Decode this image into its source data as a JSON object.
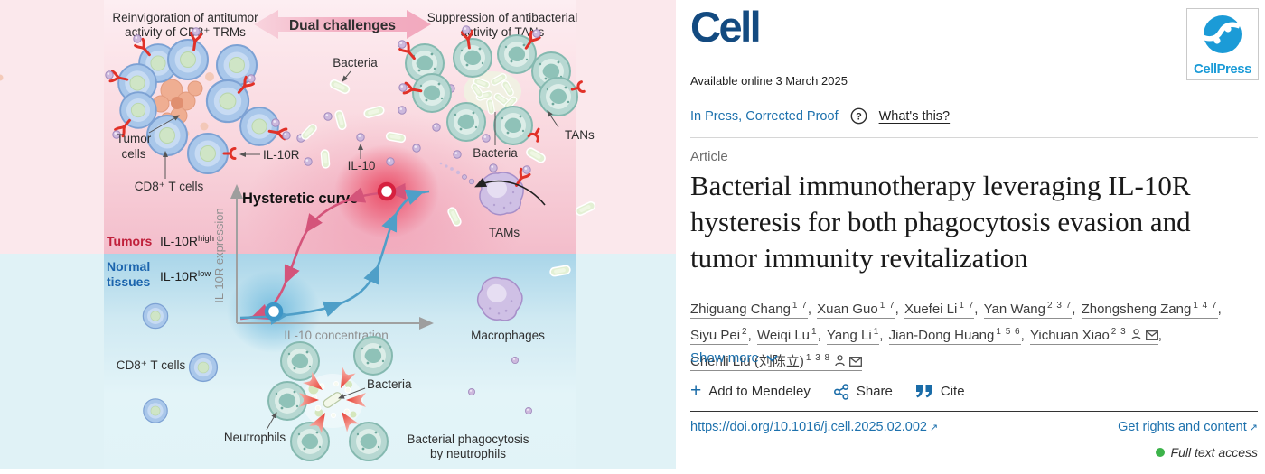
{
  "colors": {
    "link_blue": "#1d71ad",
    "icon_blue": "#1a6ca8",
    "journal_navy": "#134a80",
    "cellpress_blue": "#1b9bd7",
    "access_green": "#3cb34a",
    "tumors_red": "#c0203b",
    "normal_blue": "#1b64ad",
    "curve_pink": "#d4547a",
    "curve_blue": "#4f9fc8"
  },
  "abstract": {
    "reinvigoration_line1": "Reinvigoration of antitumor",
    "reinvigoration_line2": "activity of CD8⁺ TRMs",
    "dual_challenges": "Dual challenges",
    "suppression_line1": "Suppression of antibacterial",
    "suppression_line2": "activity of TANs",
    "bacteria_top": "Bacteria",
    "tumor_cells_line1": "Tumor",
    "tumor_cells_line2": "cells",
    "cd8_top_label": "CD8⁺ T cells",
    "il10r_label": "IL-10R",
    "il10_label": "IL-10",
    "tans_label": "TANs",
    "bacteria_tan_label": "Bacteria",
    "tams_label": "TAMs",
    "plot_title": "Hysteretic curve",
    "y_axis": "IL-10R expression",
    "x_axis": "IL-10 concentration",
    "tumors_label": "Tumors",
    "il10r_high_base": "IL-10R",
    "il10r_high_sup": "high",
    "normal_line1": "Normal",
    "normal_line2": "tissues",
    "il10r_low_base": "IL-10R",
    "il10r_low_sup": "low",
    "macrophages_label": "Macrophages",
    "cd8_bottom_label": "CD8⁺ T cells",
    "neutrophils_label": "Neutrophils",
    "bacteria_bottom_label": "Bacteria",
    "phagocytosis_line1": "Bacterial phagocytosis",
    "phagocytosis_line2": "by neutrophils"
  },
  "header": {
    "journal_logo": "Cell",
    "publisher_logo": "CellPress",
    "available_online": "Available online 3 March 2025",
    "in_press": "In Press, Corrected Proof",
    "whats_this": "What's this?"
  },
  "article": {
    "type_label": "Article",
    "title_line1": "Bacterial immunotherapy leveraging IL-10R",
    "title_line2": "hysteresis for both phagocytosis evasion and",
    "title_line3": "tumor immunity revitalization",
    "show_more": "Show more"
  },
  "authors": {
    "list": [
      {
        "name": "Zhiguang Chang",
        "sup": "1 7"
      },
      {
        "name": "Xuan Guo",
        "sup": "1 7"
      },
      {
        "name": "Xuefei Li",
        "sup": "1 7"
      },
      {
        "name": "Yan Wang",
        "sup": "2 3 7"
      },
      {
        "name": "Zhongsheng Zang",
        "sup": "1 4 7"
      },
      {
        "name": "Siyu Pei",
        "sup": "2"
      },
      {
        "name": "Weiqi Lu",
        "sup": "1"
      },
      {
        "name": "Yang Li",
        "sup": "1"
      },
      {
        "name": "Jian-Dong Huang",
        "sup": "1 5 6"
      },
      {
        "name": "Yichuan Xiao",
        "sup": "2 3",
        "person": true,
        "mail": true
      },
      {
        "name": "Chenli Liu (刘陈立)",
        "sup": "1 3 8",
        "person": true,
        "mail": true
      }
    ]
  },
  "actions": {
    "mendeley": "Add to Mendeley",
    "share": "Share",
    "cite": "Cite"
  },
  "footer": {
    "doi": "https://doi.org/10.1016/j.cell.2025.02.002",
    "rights": "Get rights and content",
    "access": "Full text access"
  }
}
